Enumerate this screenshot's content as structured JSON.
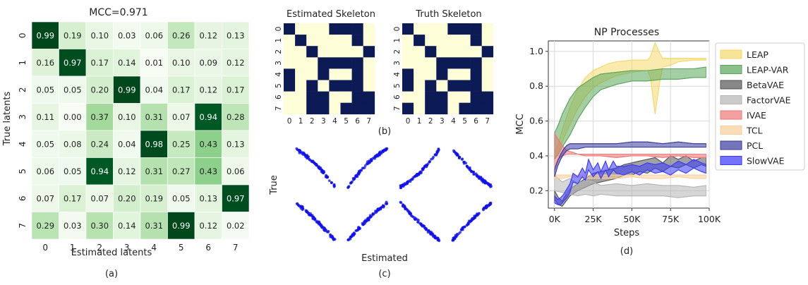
{
  "chart_data": [
    {
      "type": "heatmap",
      "panel_label": "(a)",
      "title": "MCC=0.971",
      "xlabel": "Estimated latents",
      "ylabel": "True latents",
      "x_tick_labels": [
        "0",
        "1",
        "2",
        "3",
        "4",
        "5",
        "6",
        "7"
      ],
      "y_tick_labels": [
        "0",
        "1",
        "2",
        "3",
        "4",
        "5",
        "6",
        "7"
      ],
      "colormap": "Greens",
      "values": [
        [
          0.99,
          0.19,
          0.1,
          0.03,
          0.06,
          0.26,
          0.12,
          0.13
        ],
        [
          0.16,
          0.97,
          0.17,
          0.14,
          0.01,
          0.1,
          0.09,
          0.12
        ],
        [
          0.05,
          0.05,
          0.2,
          0.99,
          0.04,
          0.17,
          0.12,
          0.17
        ],
        [
          0.11,
          0.0,
          0.37,
          0.1,
          0.31,
          0.07,
          0.94,
          0.28
        ],
        [
          0.05,
          0.08,
          0.24,
          0.04,
          0.98,
          0.25,
          0.43,
          0.13
        ],
        [
          0.06,
          0.05,
          0.94,
          0.12,
          0.31,
          0.27,
          0.43,
          0.06
        ],
        [
          0.07,
          0.17,
          0.07,
          0.2,
          0.19,
          0.05,
          0.13,
          0.97
        ],
        [
          0.29,
          0.03,
          0.3,
          0.14,
          0.31,
          0.99,
          0.12,
          0.02
        ]
      ],
      "labels": [
        [
          "0.99",
          "0.19",
          "0.10",
          "0.03",
          "0.06",
          "0.26",
          "0.12",
          "0.13"
        ],
        [
          "0.16",
          "0.97",
          "0.17",
          "0.14",
          "0.01",
          "0.10",
          "0.09",
          "0.12"
        ],
        [
          "0.05",
          "0.05",
          "0.20",
          "0.99",
          "0.04",
          "0.17",
          "0.12",
          "0.17"
        ],
        [
          "0.11",
          "0.00",
          "0.37",
          "0.10",
          "0.31",
          "0.07",
          "0.94",
          "0.28"
        ],
        [
          "0.05",
          "0.08",
          "0.24",
          "0.04",
          "0.98",
          "0.25",
          "0.43",
          "0.13"
        ],
        [
          "0.06",
          "0.05",
          "0.94",
          "0.12",
          "0.31",
          "0.27",
          "0.43",
          "0.06"
        ],
        [
          "0.07",
          "0.17",
          "0.07",
          "0.20",
          "0.19",
          "0.05",
          "0.13",
          "0.97"
        ],
        [
          "0.29",
          "0.03",
          "0.30",
          "0.14",
          "0.31",
          "0.99",
          "0.12",
          "0.02"
        ]
      ]
    },
    {
      "type": "heatmap",
      "panel_label": "(b)",
      "subplots": [
        {
          "title": "Estimated Skeleton",
          "tick_labels": [
            "0",
            "1",
            "2",
            "3",
            "4",
            "5",
            "6",
            "7"
          ],
          "matrix": [
            [
              1,
              0,
              0,
              0,
              1,
              1,
              1,
              0
            ],
            [
              0,
              1,
              0,
              0,
              0,
              0,
              1,
              0
            ],
            [
              0,
              0,
              1,
              0,
              0,
              0,
              0,
              1
            ],
            [
              0,
              0,
              0,
              1,
              1,
              1,
              1,
              0
            ],
            [
              1,
              0,
              0,
              1,
              0,
              0,
              1,
              0
            ],
            [
              1,
              0,
              1,
              0,
              1,
              1,
              1,
              0
            ],
            [
              0,
              0,
              1,
              1,
              0,
              0,
              1,
              1
            ],
            [
              0,
              0,
              1,
              1,
              0,
              1,
              1,
              1
            ]
          ]
        },
        {
          "title": "Truth Skeleton",
          "tick_labels": [
            "0",
            "1",
            "2",
            "3",
            "4",
            "5",
            "6",
            "7"
          ],
          "matrix": [
            [
              1,
              0,
              0,
              0,
              1,
              1,
              1,
              0
            ],
            [
              0,
              1,
              0,
              0,
              0,
              0,
              1,
              0
            ],
            [
              0,
              0,
              1,
              0,
              0,
              0,
              0,
              1
            ],
            [
              0,
              0,
              0,
              1,
              1,
              1,
              1,
              0
            ],
            [
              1,
              0,
              0,
              1,
              0,
              0,
              1,
              0
            ],
            [
              1,
              0,
              1,
              0,
              1,
              1,
              1,
              0
            ],
            [
              0,
              0,
              1,
              1,
              0,
              0,
              1,
              1
            ],
            [
              1,
              0,
              1,
              1,
              0,
              1,
              1,
              1
            ]
          ]
        }
      ],
      "colors": {
        "edge": "#0c1a55",
        "no_edge": "#fdfdd8"
      }
    },
    {
      "type": "scatter",
      "panel_label": "(c)",
      "xlabel": "Estimated",
      "ylabel": "True",
      "point_color": "#1010ee",
      "grid_rows": 2,
      "grid_cols": 4,
      "subplots": [
        {
          "slope": -1,
          "curvature": 0.1
        },
        {
          "slope": 1,
          "curvature": 0.12
        },
        {
          "slope": 1,
          "curvature": -0.12
        },
        {
          "slope": -1,
          "curvature": -0.08
        },
        {
          "slope": -1,
          "curvature": 0.05
        },
        {
          "slope": 1,
          "curvature": 0.05
        },
        {
          "slope": -1,
          "curvature": -0.05
        },
        {
          "slope": 1,
          "curvature": 0.05
        }
      ]
    },
    {
      "type": "line",
      "panel_label": "(d)",
      "title": "NP Processes",
      "xlabel": "Steps",
      "ylabel": "MCC",
      "xlim": [
        -4000,
        100000
      ],
      "ylim": [
        0.1,
        1.06
      ],
      "x_ticks": [
        0,
        25000,
        50000,
        75000,
        100000
      ],
      "x_tick_labels": [
        "0K",
        "25K",
        "50K",
        "75K",
        "100K"
      ],
      "y_ticks": [
        0.2,
        0.4,
        0.6,
        0.8,
        1.0
      ],
      "y_tick_labels": [
        "0.2",
        "0.4",
        "0.6",
        "0.8",
        "1.0"
      ],
      "grid": true,
      "legend_position": "right",
      "series": [
        {
          "name": "LEAP",
          "color": "#f5d86a",
          "x": [
            0,
            2500,
            5000,
            10000,
            15000,
            20000,
            25000,
            30000,
            35000,
            40000,
            50000,
            60000,
            62000,
            65000,
            68000,
            70000,
            75000,
            80000,
            90000,
            98000
          ],
          "lower": [
            0.38,
            0.42,
            0.48,
            0.58,
            0.67,
            0.74,
            0.79,
            0.82,
            0.84,
            0.86,
            0.88,
            0.89,
            0.85,
            0.64,
            0.82,
            0.91,
            0.92,
            0.94,
            0.95,
            0.95
          ],
          "upper": [
            0.42,
            0.47,
            0.55,
            0.68,
            0.78,
            0.85,
            0.89,
            0.91,
            0.93,
            0.94,
            0.95,
            0.95,
            0.97,
            1.05,
            0.99,
            0.96,
            0.96,
            0.96,
            0.96,
            0.96
          ]
        },
        {
          "name": "LEAP-VAR",
          "color": "#5aa55a",
          "x": [
            0,
            2500,
            5000,
            10000,
            15000,
            20000,
            25000,
            30000,
            40000,
            50000,
            60000,
            70000,
            80000,
            90000,
            98000
          ],
          "lower": [
            0.38,
            0.41,
            0.45,
            0.52,
            0.61,
            0.68,
            0.74,
            0.78,
            0.81,
            0.83,
            0.83,
            0.84,
            0.84,
            0.85,
            0.85
          ],
          "upper": [
            0.53,
            0.58,
            0.64,
            0.73,
            0.79,
            0.82,
            0.85,
            0.87,
            0.88,
            0.89,
            0.89,
            0.9,
            0.9,
            0.9,
            0.91
          ]
        },
        {
          "name": "BetaVAE",
          "color": "#555555",
          "x": [
            0,
            2500,
            5000,
            7500,
            10000,
            15000,
            20000,
            25000,
            30000,
            35000,
            40000,
            45000,
            50000,
            55000,
            60000,
            65000,
            70000,
            75000,
            80000,
            85000,
            90000,
            95000,
            98000
          ],
          "lower": [
            0.15,
            0.12,
            0.11,
            0.14,
            0.17,
            0.2,
            0.22,
            0.24,
            0.25,
            0.26,
            0.27,
            0.29,
            0.29,
            0.31,
            0.3,
            0.33,
            0.31,
            0.34,
            0.33,
            0.35,
            0.33,
            0.35,
            0.34
          ],
          "upper": [
            0.2,
            0.16,
            0.14,
            0.18,
            0.21,
            0.24,
            0.27,
            0.3,
            0.31,
            0.32,
            0.33,
            0.35,
            0.36,
            0.37,
            0.38,
            0.39,
            0.36,
            0.4,
            0.38,
            0.4,
            0.37,
            0.39,
            0.39
          ]
        },
        {
          "name": "FactorVAE",
          "color": "#b5b5b5",
          "x": [
            0,
            5000,
            10000,
            15000,
            20000,
            25000,
            30000,
            40000,
            50000,
            60000,
            70000,
            80000,
            90000,
            98000
          ],
          "lower": [
            0.2,
            0.19,
            0.18,
            0.17,
            0.18,
            0.17,
            0.18,
            0.17,
            0.17,
            0.17,
            0.17,
            0.16,
            0.17,
            0.17
          ],
          "upper": [
            0.29,
            0.25,
            0.27,
            0.24,
            0.26,
            0.25,
            0.23,
            0.24,
            0.23,
            0.24,
            0.23,
            0.23,
            0.22,
            0.23
          ]
        },
        {
          "name": "IVAE",
          "color": "#ee7777",
          "x": [
            0,
            2000,
            5000,
            8000,
            12000,
            15000,
            20000,
            30000,
            40000,
            50000,
            60000,
            70000,
            80000,
            90000,
            98000
          ],
          "lower": [
            0.33,
            0.38,
            0.4,
            0.41,
            0.41,
            0.41,
            0.4,
            0.4,
            0.39,
            0.4,
            0.4,
            0.39,
            0.4,
            0.39,
            0.39
          ],
          "upper": [
            0.53,
            0.5,
            0.46,
            0.43,
            0.42,
            0.41,
            0.41,
            0.41,
            0.41,
            0.41,
            0.41,
            0.41,
            0.41,
            0.41,
            0.41
          ]
        },
        {
          "name": "TCL",
          "color": "#f8cf9a",
          "x": [
            0,
            5000,
            10000,
            20000,
            30000,
            40000,
            50000,
            60000,
            70000,
            80000,
            90000,
            98000
          ],
          "lower": [
            0.27,
            0.27,
            0.28,
            0.27,
            0.27,
            0.27,
            0.28,
            0.27,
            0.27,
            0.28,
            0.27,
            0.27
          ],
          "upper": [
            0.29,
            0.29,
            0.29,
            0.29,
            0.29,
            0.29,
            0.29,
            0.29,
            0.29,
            0.29,
            0.29,
            0.29
          ]
        },
        {
          "name": "PCL",
          "color": "#3a3aa0",
          "x": [
            0,
            2000,
            4000,
            6000,
            8000,
            10000,
            15000,
            20000,
            30000,
            40000,
            50000,
            60000,
            70000,
            80000,
            90000,
            98000
          ],
          "lower": [
            0.28,
            0.34,
            0.38,
            0.41,
            0.43,
            0.44,
            0.44,
            0.45,
            0.45,
            0.45,
            0.45,
            0.45,
            0.45,
            0.45,
            0.45,
            0.45
          ],
          "upper": [
            0.32,
            0.37,
            0.41,
            0.44,
            0.46,
            0.47,
            0.47,
            0.47,
            0.47,
            0.47,
            0.48,
            0.48,
            0.47,
            0.48,
            0.47,
            0.47
          ]
        },
        {
          "name": "SlowVAE",
          "color": "#3838ff",
          "x": [
            0,
            2000,
            4000,
            6000,
            8000,
            10000,
            12000,
            15000,
            18000,
            20000,
            22000,
            25000,
            28000,
            30000,
            33000,
            35000,
            38000,
            40000,
            45000,
            50000,
            55000,
            60000,
            65000,
            70000,
            75000,
            80000,
            85000,
            90000,
            95000,
            98000
          ],
          "lower": [
            0.13,
            0.12,
            0.12,
            0.14,
            0.16,
            0.19,
            0.25,
            0.24,
            0.28,
            0.26,
            0.32,
            0.28,
            0.31,
            0.27,
            0.32,
            0.28,
            0.32,
            0.3,
            0.29,
            0.31,
            0.29,
            0.32,
            0.3,
            0.31,
            0.29,
            0.32,
            0.3,
            0.33,
            0.31,
            0.3
          ],
          "upper": [
            0.17,
            0.15,
            0.16,
            0.18,
            0.21,
            0.24,
            0.3,
            0.28,
            0.33,
            0.3,
            0.38,
            0.32,
            0.36,
            0.31,
            0.37,
            0.32,
            0.37,
            0.34,
            0.34,
            0.35,
            0.34,
            0.36,
            0.35,
            0.36,
            0.34,
            0.37,
            0.35,
            0.38,
            0.36,
            0.35
          ]
        }
      ]
    }
  ]
}
